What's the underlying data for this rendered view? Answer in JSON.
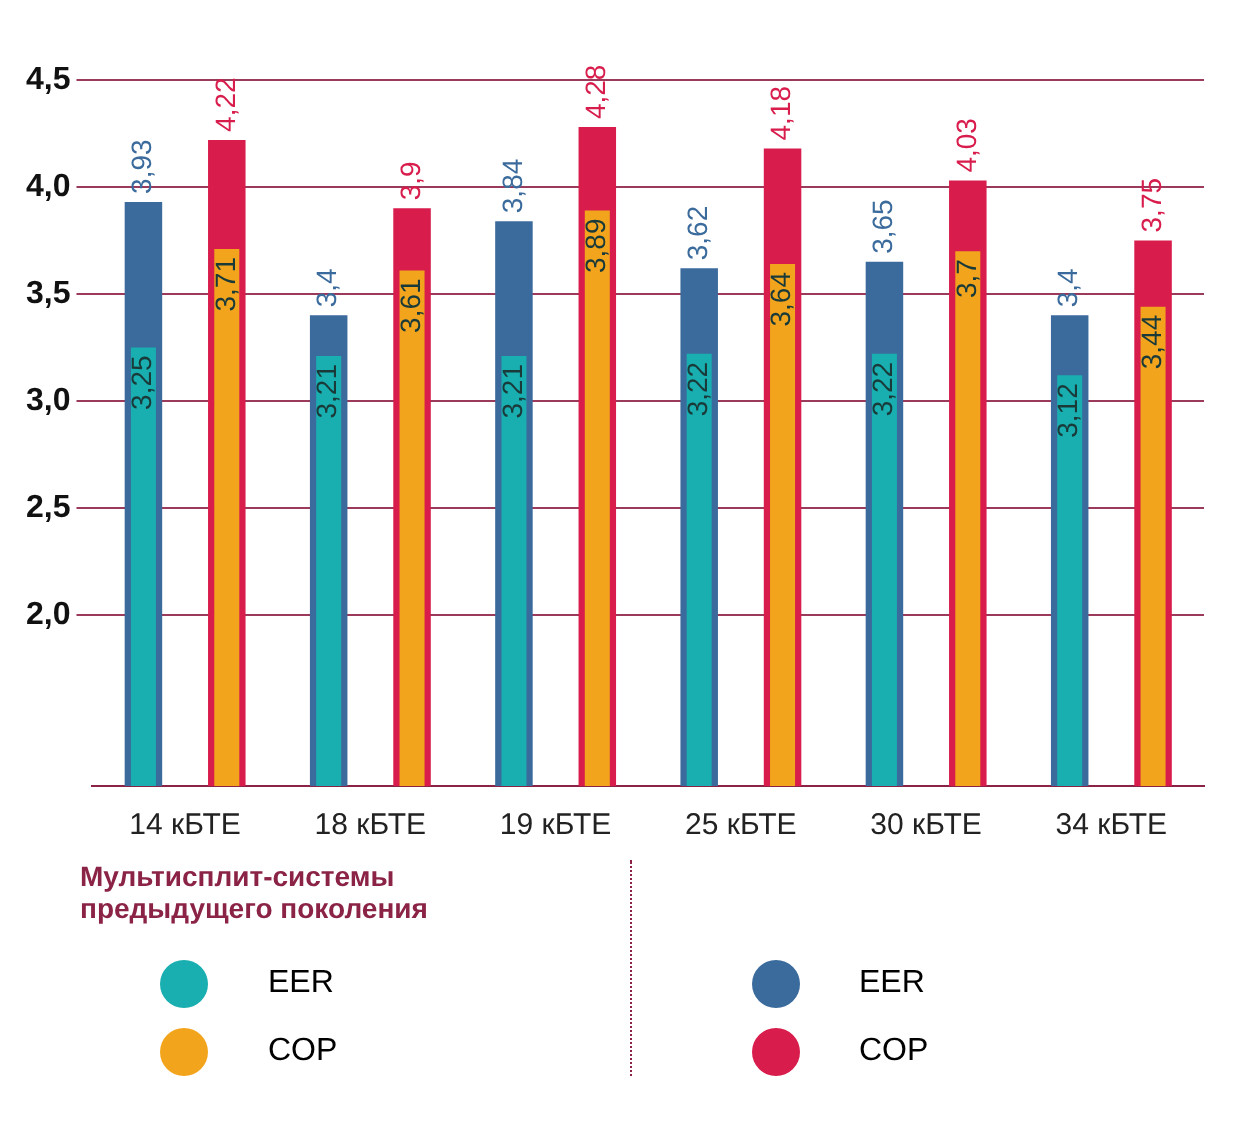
{
  "chart_data": {
    "type": "bar",
    "categories": [
      "14 кБТЕ",
      "18 кБТЕ",
      "19 кБТЕ",
      "25 кБТЕ",
      "30 кБТЕ",
      "34 кБТЕ"
    ],
    "ylim": [
      1.2,
      4.5
    ],
    "yticks": [
      {
        "value": 2,
        "label": "2,0"
      },
      {
        "value": 2.5,
        "label": "2,5"
      },
      {
        "value": 3,
        "label": "3,0"
      },
      {
        "value": 3.5,
        "label": "3,5"
      },
      {
        "value": 4,
        "label": "4,0"
      },
      {
        "value": 4.5,
        "label": "4,5"
      }
    ],
    "grid": "y",
    "legend": "bottom",
    "legend_title": "Мультисплит-системы предыдущего поколения",
    "series": [
      {
        "name": "EER",
        "color": "#19aeb0",
        "values": [
          3.25,
          3.21,
          3.21,
          3.22,
          3.22,
          3.12
        ],
        "value_labels": [
          "3,25",
          "3,21",
          "3,21",
          "3,22",
          "3,22",
          "3,12"
        ]
      },
      {
        "name": "COP",
        "color": "#f2a51c",
        "values": [
          3.71,
          3.61,
          3.89,
          3.64,
          3.7,
          3.44
        ],
        "value_labels": [
          "3,71",
          "3,61",
          "3,89",
          "3,64",
          "3,7",
          "3,44"
        ]
      },
      {
        "name": "EER",
        "color": "#3b6b9c",
        "values": [
          3.93,
          3.4,
          3.84,
          3.62,
          3.65,
          3.4
        ],
        "value_labels": [
          "3,93",
          "3,4",
          "3,84",
          "3,62",
          "3,65",
          "3,4"
        ]
      },
      {
        "name": "COP",
        "color": "#d81c4c",
        "values": [
          4.22,
          3.9,
          4.28,
          4.18,
          4.03,
          3.75
        ],
        "value_labels": [
          "4,22",
          "3,9",
          "4,28",
          "4,18",
          "4,03",
          "3,75"
        ]
      }
    ]
  }
}
